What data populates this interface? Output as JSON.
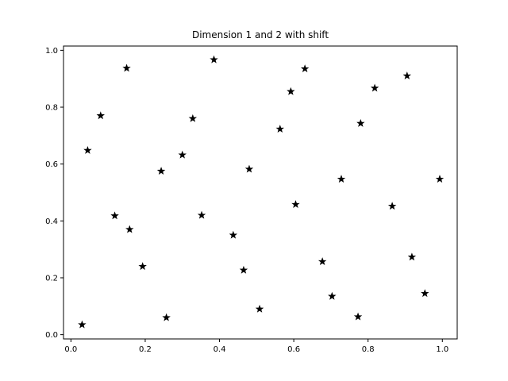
{
  "chart_data": {
    "type": "scatter",
    "title": "Dimension 1 and 2 with shift",
    "xlabel": "",
    "ylabel": "",
    "xlim": [
      -0.02,
      1.04
    ],
    "ylim": [
      -0.015,
      1.015
    ],
    "xticks": [
      "0.0",
      "0.2",
      "0.4",
      "0.6",
      "0.8",
      "1.0"
    ],
    "yticks": [
      "0.0",
      "0.2",
      "0.4",
      "0.6",
      "0.8",
      "1.0"
    ],
    "grid": false,
    "marker": "star",
    "marker_color": "#000000",
    "series": [
      {
        "x": [
          0.03,
          0.045,
          0.08,
          0.118,
          0.15,
          0.158,
          0.193,
          0.243,
          0.257,
          0.3,
          0.328,
          0.352,
          0.385,
          0.437,
          0.465,
          0.48,
          0.508,
          0.563,
          0.592,
          0.605,
          0.63,
          0.677,
          0.703,
          0.728,
          0.773,
          0.78,
          0.818,
          0.865,
          0.905,
          0.918,
          0.953,
          0.993
        ],
        "y": [
          0.035,
          0.648,
          0.77,
          0.418,
          0.937,
          0.37,
          0.24,
          0.575,
          0.06,
          0.632,
          0.76,
          0.42,
          0.967,
          0.35,
          0.227,
          0.582,
          0.09,
          0.723,
          0.855,
          0.458,
          0.935,
          0.257,
          0.135,
          0.547,
          0.063,
          0.743,
          0.867,
          0.452,
          0.91,
          0.273,
          0.145,
          0.547
        ]
      }
    ]
  }
}
